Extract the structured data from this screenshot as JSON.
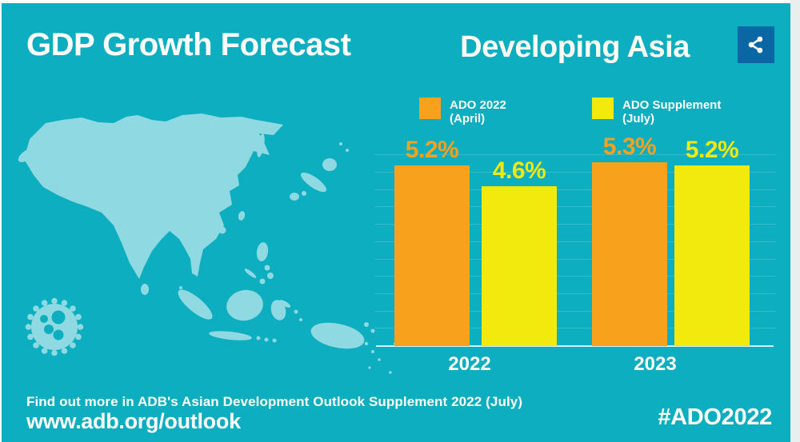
{
  "header": {
    "title": "GDP Growth Forecast",
    "region": "Developing Asia"
  },
  "icons": {
    "share": "share-icon",
    "virus": "coronavirus-icon",
    "map": "asia-map-silhouette"
  },
  "legend": {
    "items": [
      {
        "line1": "ADO 2022",
        "line2": "(April)",
        "color": "#F7A11C"
      },
      {
        "line1": "ADO Supplement",
        "line2": "(July)",
        "color": "#F2E90D"
      }
    ]
  },
  "chart_data": {
    "type": "bar",
    "title": "GDP Growth Forecast",
    "subtitle": "Developing Asia",
    "categories": [
      "2022",
      "2023"
    ],
    "series": [
      {
        "name": "ADO 2022 (April)",
        "color": "#F7A11C",
        "values": [
          5.2,
          5.3
        ],
        "labels": [
          "5.2%",
          "5.3%"
        ]
      },
      {
        "name": "ADO Supplement (July)",
        "color": "#F2E90D",
        "values": [
          4.6,
          5.2
        ],
        "labels": [
          "4.6%",
          "5.2%"
        ]
      }
    ],
    "ylim": [
      0,
      5.5
    ],
    "gridline_step": 0.5,
    "grid": true,
    "legend_position": "top",
    "value_label_color_matches_bar": true
  },
  "footer": {
    "line1": "Find out more in ADB's Asian Development Outlook Supplement 2022 (July)",
    "line2": "www.adb.org/outlook",
    "hashtag": "#ADO2022"
  },
  "colors": {
    "background": "#0CAEC0",
    "map": "#8FD9E2",
    "orange": "#F7A11C",
    "yellow": "#F2E90D",
    "share_blue": "#0B67A4",
    "text": "#FFFFFF"
  }
}
